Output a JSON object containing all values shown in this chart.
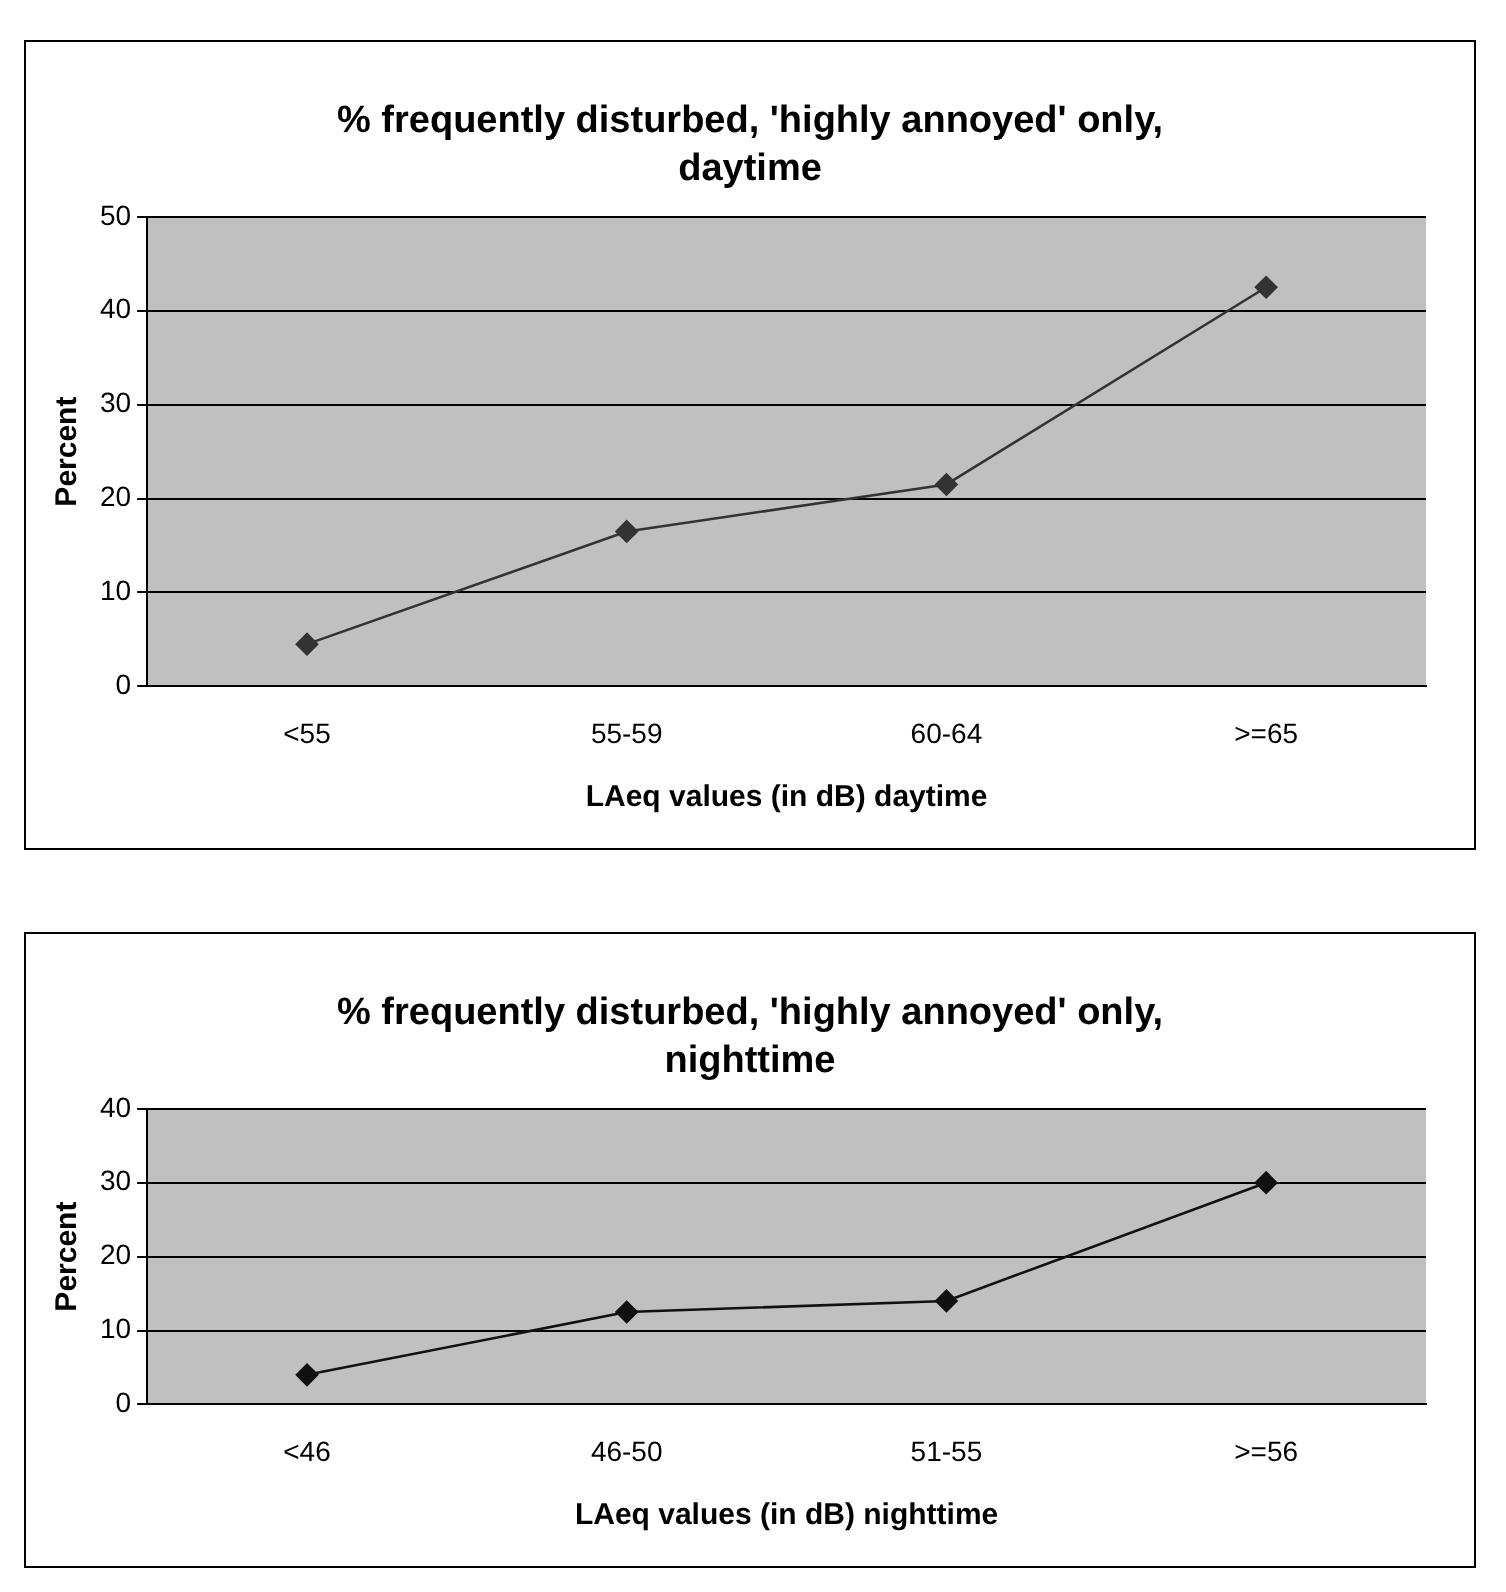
{
  "chart_data": [
    {
      "type": "line",
      "title": "% frequently disturbed, 'highly annoyed' only, daytime",
      "xlabel": "LAeq values (in dB) daytime",
      "ylabel": "Percent",
      "categories": [
        "<55",
        "55-59",
        "60-64",
        ">=65"
      ],
      "values": [
        4.5,
        16.5,
        21.5,
        42.5
      ],
      "color": "#333333",
      "ylim": [
        0,
        50
      ],
      "yticks": [
        0,
        10,
        20,
        30,
        40,
        50
      ],
      "grid": "y",
      "marker": "diamond",
      "legend": false
    },
    {
      "type": "line",
      "title": "% frequently disturbed, 'highly annoyed' only, nighttime",
      "xlabel": "LAeq values (in dB) nighttime",
      "ylabel": "Percent",
      "categories": [
        "<46",
        "46-50",
        "51-55",
        ">=56"
      ],
      "values": [
        4,
        12.5,
        14,
        30
      ],
      "color": "#111111",
      "ylim": [
        0,
        40
      ],
      "yticks": [
        0,
        10,
        20,
        30,
        40
      ],
      "grid": "y",
      "marker": "diamond",
      "legend": false
    }
  ]
}
